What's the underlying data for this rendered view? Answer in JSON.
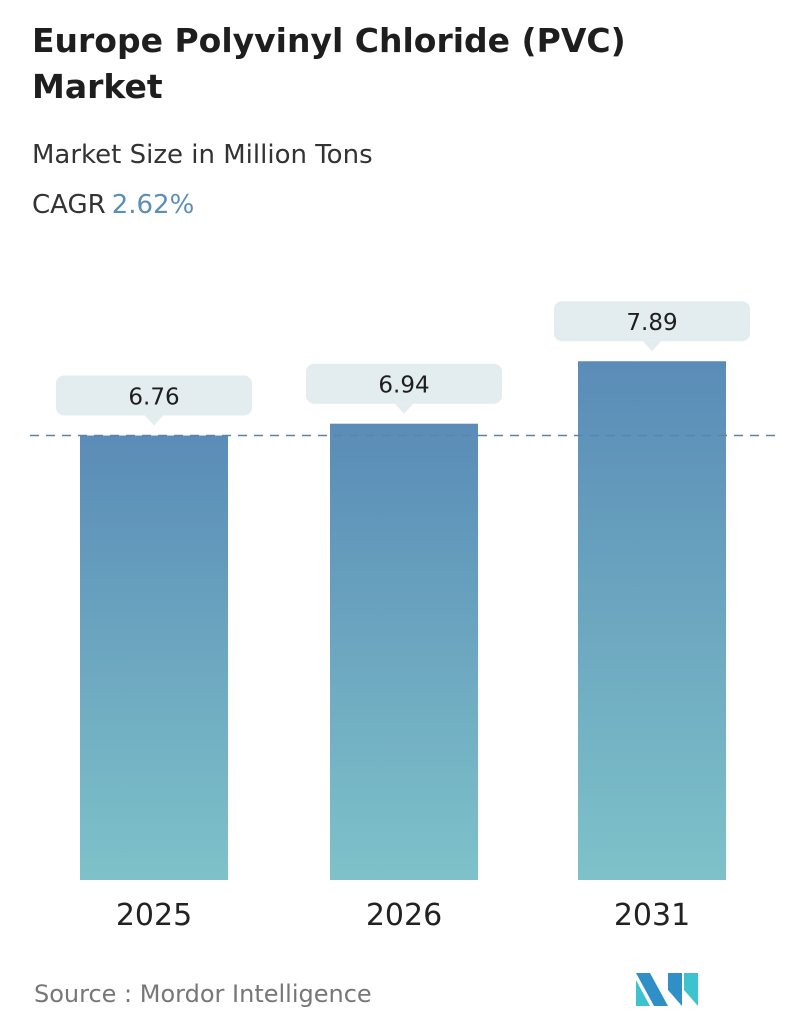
{
  "title": "Europe Polyvinyl Chloride (PVC) Market",
  "subtitle": "Market Size in Million Tons",
  "cagr_label": "CAGR",
  "cagr_value": "2.62%",
  "source": "Source :  Mordor Intelligence",
  "logo_text": "Mordor Intelligence",
  "colors": {
    "bar_top": "#5a8cb7",
    "bar_bottom": "#7ec2c9",
    "callout": "#e3ecef",
    "dashed_line": "#5b85a8",
    "accent": "#5b8fb6"
  },
  "chart_data": {
    "type": "bar",
    "categories": [
      "2025",
      "2026",
      "2031"
    ],
    "values": [
      6.76,
      6.94,
      7.89
    ],
    "data_labels": [
      "6.76",
      "6.94",
      "7.89"
    ],
    "reference_line": 6.76,
    "grid": false,
    "legend": "none"
  }
}
